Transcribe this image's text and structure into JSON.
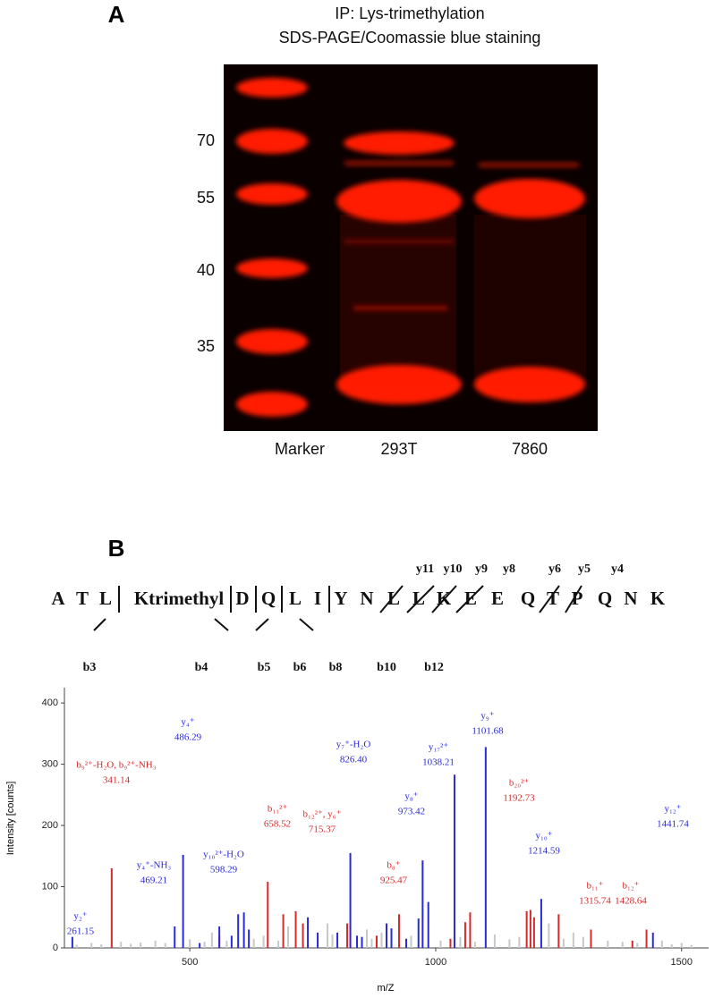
{
  "panel_a": {
    "label": "A",
    "title": [
      "IP: Lys-trimethylation",
      "SDS-PAGE/Coomassie blue staining"
    ],
    "ladder": [
      70,
      55,
      40,
      35
    ],
    "lanes": [
      "Marker",
      "293T",
      "7860"
    ]
  },
  "panel_b": {
    "label": "B",
    "residues": [
      "A",
      "T",
      "L",
      "Ktrimethyl",
      "D",
      "Q",
      "L",
      "I",
      "Y",
      "N",
      "L",
      "L",
      "K",
      "E",
      "E",
      "Q",
      "T",
      "P",
      "Q",
      "N",
      "K"
    ],
    "y_ions": [
      "y11",
      "y10",
      "y9",
      "y8",
      "y6",
      "y5",
      "y4"
    ],
    "b_ions": [
      "b3",
      "b4",
      "b5",
      "b6",
      "b8",
      "b10",
      "b12"
    ]
  },
  "chart_data": {
    "type": "bar",
    "x_label": "m/Z",
    "y_label": "Intensity [counts]",
    "xlim": [
      245,
      1555
    ],
    "ylim": [
      0,
      425
    ],
    "xticks": [
      500,
      1000,
      1500
    ],
    "yticks": [
      0,
      100,
      200,
      300,
      400
    ],
    "series": [
      {
        "color": "#c8c8c8",
        "x": [
          270,
          300,
          320,
          360,
          380,
          400,
          430,
          450,
          500,
          530,
          545,
          575,
          630,
          650,
          680,
          700,
          760,
          780,
          790,
          860,
          870,
          890,
          950,
          1010,
          1050,
          1080,
          1120,
          1150,
          1170,
          1230,
          1260,
          1280,
          1300,
          1350,
          1380,
          1410,
          1460,
          1480,
          1500,
          1520
        ],
        "values": [
          5,
          8,
          6,
          10,
          7,
          9,
          12,
          8,
          14,
          10,
          25,
          12,
          15,
          20,
          12,
          35,
          18,
          40,
          22,
          30,
          15,
          25,
          20,
          12,
          18,
          10,
          22,
          14,
          18,
          40,
          15,
          25,
          18,
          12,
          10,
          8,
          12,
          6,
          8,
          5
        ]
      },
      {
        "color": "#d62a2a",
        "x": [
          341.14,
          560,
          658.52,
          690,
          715.37,
          730,
          820,
          880,
          925.47,
          1030,
          1060,
          1070,
          1185,
          1192.73,
          1200,
          1250,
          1315.74,
          1400,
          1428.64
        ],
        "values": [
          130,
          20,
          108,
          55,
          60,
          40,
          40,
          20,
          55,
          15,
          42,
          58,
          60,
          62,
          50,
          55,
          30,
          12,
          30
        ]
      },
      {
        "color": "#2a2ad6",
        "x": [
          261.15,
          469.21,
          486.29,
          520,
          560,
          585,
          598.29,
          610,
          620,
          740,
          760,
          800,
          826.4,
          840,
          850,
          900,
          910,
          940,
          965,
          973.42,
          985,
          1038.21,
          1101.68,
          1214.59,
          1441.74
        ],
        "values": [
          18,
          35,
          152,
          8,
          35,
          20,
          55,
          58,
          30,
          50,
          25,
          25,
          155,
          20,
          18,
          40,
          32,
          15,
          48,
          143,
          75,
          283,
          328,
          80,
          25
        ]
      }
    ],
    "annotations": [
      {
        "ion": "y₂⁺",
        "mz": "261.15",
        "color": "#2a2ad6"
      },
      {
        "ion": "b₉²⁺-H₂O, b₉²⁺-NH₃",
        "mz": "341.14",
        "color": "#d62a2a"
      },
      {
        "ion": "y₄⁺-NH₃",
        "mz": "469.21",
        "color": "#2a2ad6"
      },
      {
        "ion": "y₄⁺",
        "mz": "486.29",
        "color": "#2a2ad6"
      },
      {
        "ion": "y₁₀²⁺-H₂O",
        "mz": "598.29",
        "color": "#2a2ad6"
      },
      {
        "ion": "b₁₁²⁺",
        "mz": "658.52",
        "color": "#d62a2a"
      },
      {
        "ion": "b₁₂²⁺, y₆⁺",
        "mz": "715.37",
        "color": "#d62a2a"
      },
      {
        "ion": "y₇⁺-H₂O",
        "mz": "826.40",
        "color": "#2a2ad6"
      },
      {
        "ion": "b₈⁺",
        "mz": "925.47",
        "color": "#d62a2a"
      },
      {
        "ion": "y₈⁺",
        "mz": "973.42",
        "color": "#2a2ad6"
      },
      {
        "ion": "y₁₇²⁺",
        "mz": "1038.21",
        "color": "#2a2ad6"
      },
      {
        "ion": "y₉⁺",
        "mz": "1101.68",
        "color": "#2a2ad6"
      },
      {
        "ion": "b₂₀²⁺",
        "mz": "1192.73",
        "color": "#d62a2a"
      },
      {
        "ion": "y₁₀⁺",
        "mz": "1214.59",
        "color": "#2a2ad6"
      },
      {
        "ion": "b₁₁⁺",
        "mz": "1315.74",
        "color": "#d62a2a"
      },
      {
        "ion": "b₁₂⁺",
        "mz": "1428.64",
        "color": "#d62a2a"
      },
      {
        "ion": "y₁₂⁺",
        "mz": "1441.74",
        "color": "#2a2ad6"
      }
    ]
  }
}
